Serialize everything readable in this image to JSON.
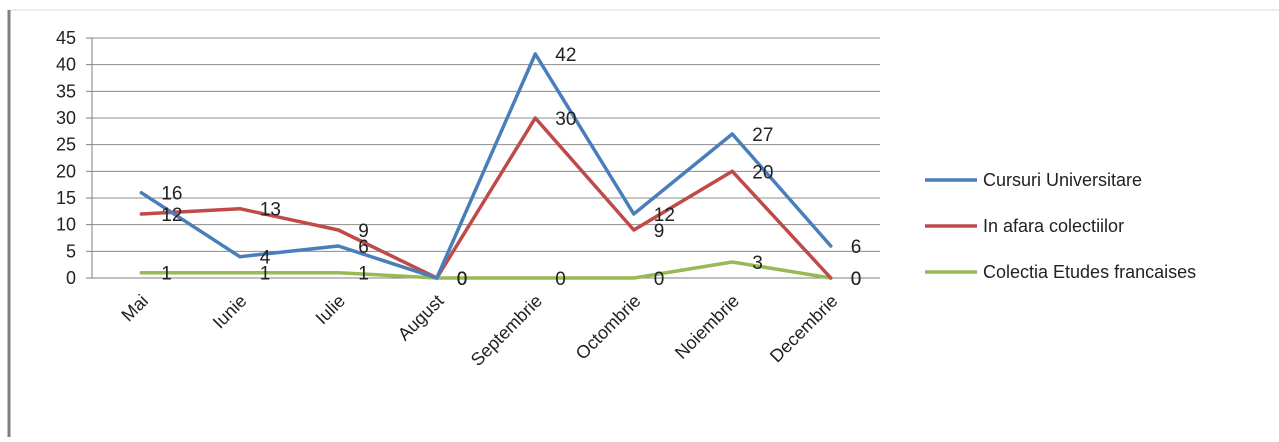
{
  "chart_data": {
    "type": "line",
    "title": "",
    "xlabel": "",
    "ylabel": "",
    "categories": [
      "Mai",
      "Iunie",
      "Iulie",
      "August",
      "Septembrie",
      "Octombrie",
      "Noiembrie",
      "Decembrie"
    ],
    "ylim": [
      0,
      45
    ],
    "yticks": [
      0,
      5,
      10,
      15,
      20,
      25,
      30,
      35,
      40,
      45
    ],
    "grid": true,
    "legend_position": "right",
    "series": [
      {
        "name": "Cursuri Universitare",
        "color": "#4a7ebb",
        "values": [
          16,
          4,
          6,
          0,
          42,
          12,
          27,
          6
        ]
      },
      {
        "name": "In afara colectiilor",
        "color": "#be4b48",
        "values": [
          12,
          13,
          9,
          0,
          30,
          9,
          20,
          0
        ]
      },
      {
        "name": "Colectia Etudes francaises",
        "color": "#98b954",
        "values": [
          1,
          1,
          1,
          0,
          0,
          0,
          3,
          0
        ]
      }
    ]
  }
}
